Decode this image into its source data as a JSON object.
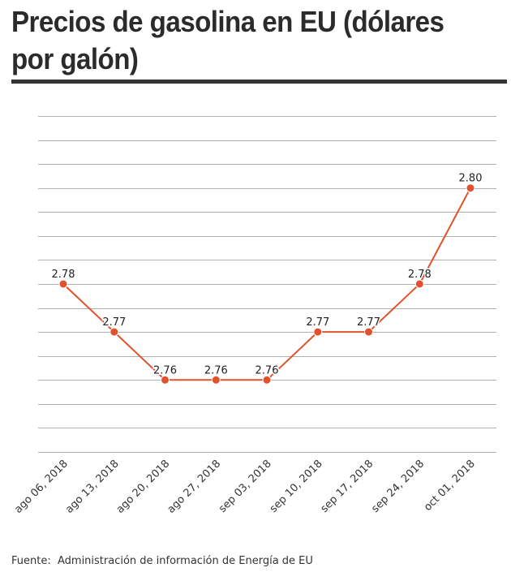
{
  "title": "Precios de gasolina en EU (dólares por galón)",
  "source": {
    "label": "Fuente:",
    "text": "Administración de información de Energía de EU"
  },
  "colors": {
    "line": "#e0522d",
    "grid": "#b0b0b0",
    "title_rule": "#333333"
  },
  "chart_data": {
    "type": "line",
    "categories": [
      "ago 06, 2018",
      "ago 13, 2018",
      "ago 20, 2018",
      "ago 27, 2018",
      "sep 03, 2018",
      "sep 10, 2018",
      "sep 17, 2018",
      "sep 24, 2018",
      "oct 01, 2018"
    ],
    "series": [
      {
        "values": [
          2.78,
          2.77,
          2.76,
          2.76,
          2.76,
          2.77,
          2.77,
          2.78,
          2.8
        ],
        "labels": [
          "2.78",
          "2.77",
          "2.76",
          "2.76",
          "2.76",
          "2.77",
          "2.77",
          "2.78",
          "2.80"
        ]
      }
    ],
    "ylim": [
      2.745,
      2.815
    ],
    "ytick_step": 0.005,
    "y_tick_labels_shown": false,
    "grid": true,
    "legend": "none",
    "xlabel": "",
    "ylabel": ""
  }
}
